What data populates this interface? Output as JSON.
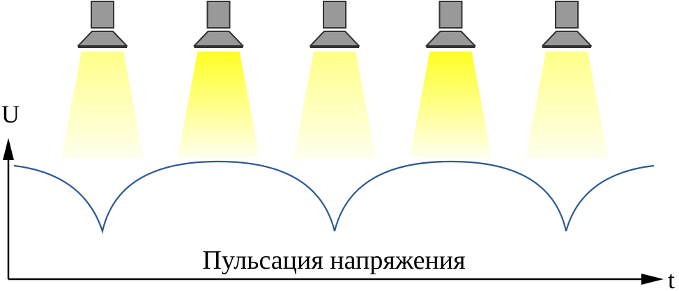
{
  "labels": {
    "y_axis": "U",
    "x_axis": "t",
    "caption": "Пульсация напряжения"
  },
  "lamps": [
    {
      "brightness": "dim"
    },
    {
      "brightness": "bright"
    },
    {
      "brightness": "dim"
    },
    {
      "brightness": "bright"
    },
    {
      "brightness": "dim"
    }
  ],
  "colors": {
    "lamp_body": "#999999",
    "lamp_outline": "#333333",
    "beam_dim": "#ffff88",
    "beam_bright": "#ffff22",
    "beam_fade": "#ffffee",
    "wave": "#2a5a95",
    "axis": "#000000"
  }
}
